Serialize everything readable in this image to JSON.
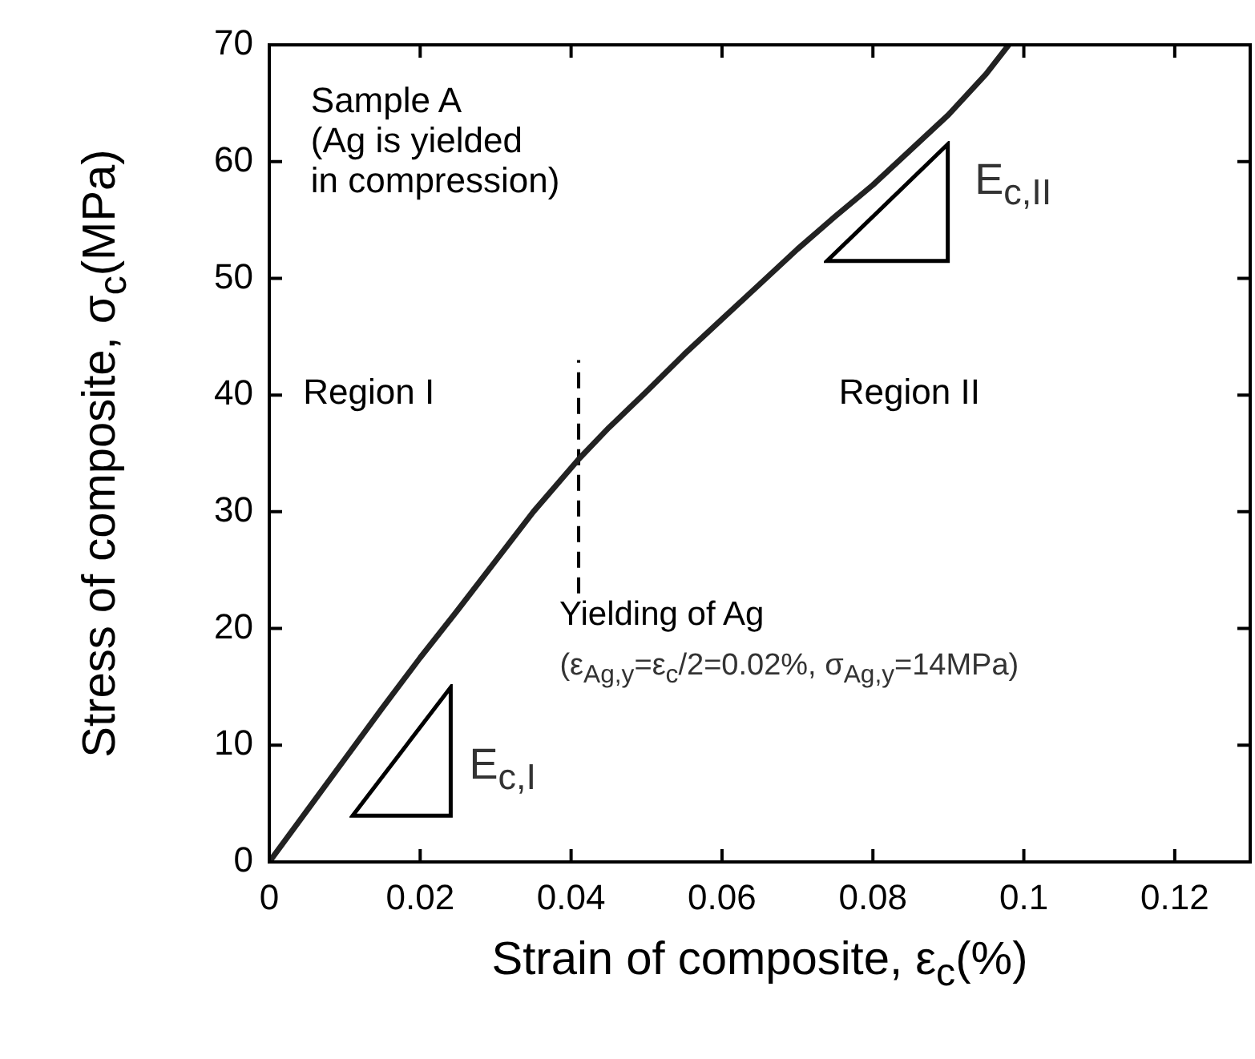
{
  "chart_data": {
    "type": "line",
    "xlabel": "Strain of composite, ε$_{c}$(%)",
    "ylabel": "Stress of composite, σ$_{c}$(MPa)",
    "x": [
      0,
      0.005,
      0.01,
      0.015,
      0.02,
      0.025,
      0.03,
      0.035,
      0.041,
      0.045,
      0.05,
      0.055,
      0.06,
      0.065,
      0.07,
      0.075,
      0.08,
      0.085,
      0.09,
      0.095,
      0.098
    ],
    "series": [
      {
        "color": "#222222",
        "values": [
          0,
          4.4,
          8.8,
          13.2,
          17.5,
          21.6,
          25.8,
          30,
          34.5,
          37.2,
          40.3,
          43.5,
          46.5,
          49.5,
          52.5,
          55.3,
          58,
          61,
          64,
          67.5,
          70
        ]
      },
      {
        "type": "line",
        "color": "#000000",
        "line_style": "dashed",
        "x": [
          0.041,
          0.041
        ],
        "values": [
          23,
          43
        ]
      }
    ],
    "xlim": [
      0,
      0.13
    ],
    "xticks": [
      0,
      0.02,
      0.04,
      0.06,
      0.08,
      {
        "value": 0.1,
        "label": "0.1"
      },
      0.12
    ],
    "ylim": [
      0,
      70
    ],
    "yticks": [
      0,
      10,
      20,
      30,
      40,
      50,
      60,
      70
    ],
    "grid": false,
    "legend": false,
    "marker": "none",
    "line_style": "solid",
    "annotations": [
      "Sample A\n(Ag is yielded\nin compression)",
      "Region I",
      "Region II",
      {
        "text": "Yielding of Ag",
        "x": 0.041,
        "y": 23
      },
      "(ε$_{Ag,y}$=ε$_{c}$/2=0.02%, σ$_{Ag,y}$=14MPa)",
      "E$_{c,I}$",
      "E$_{c,II}$"
    ]
  }
}
